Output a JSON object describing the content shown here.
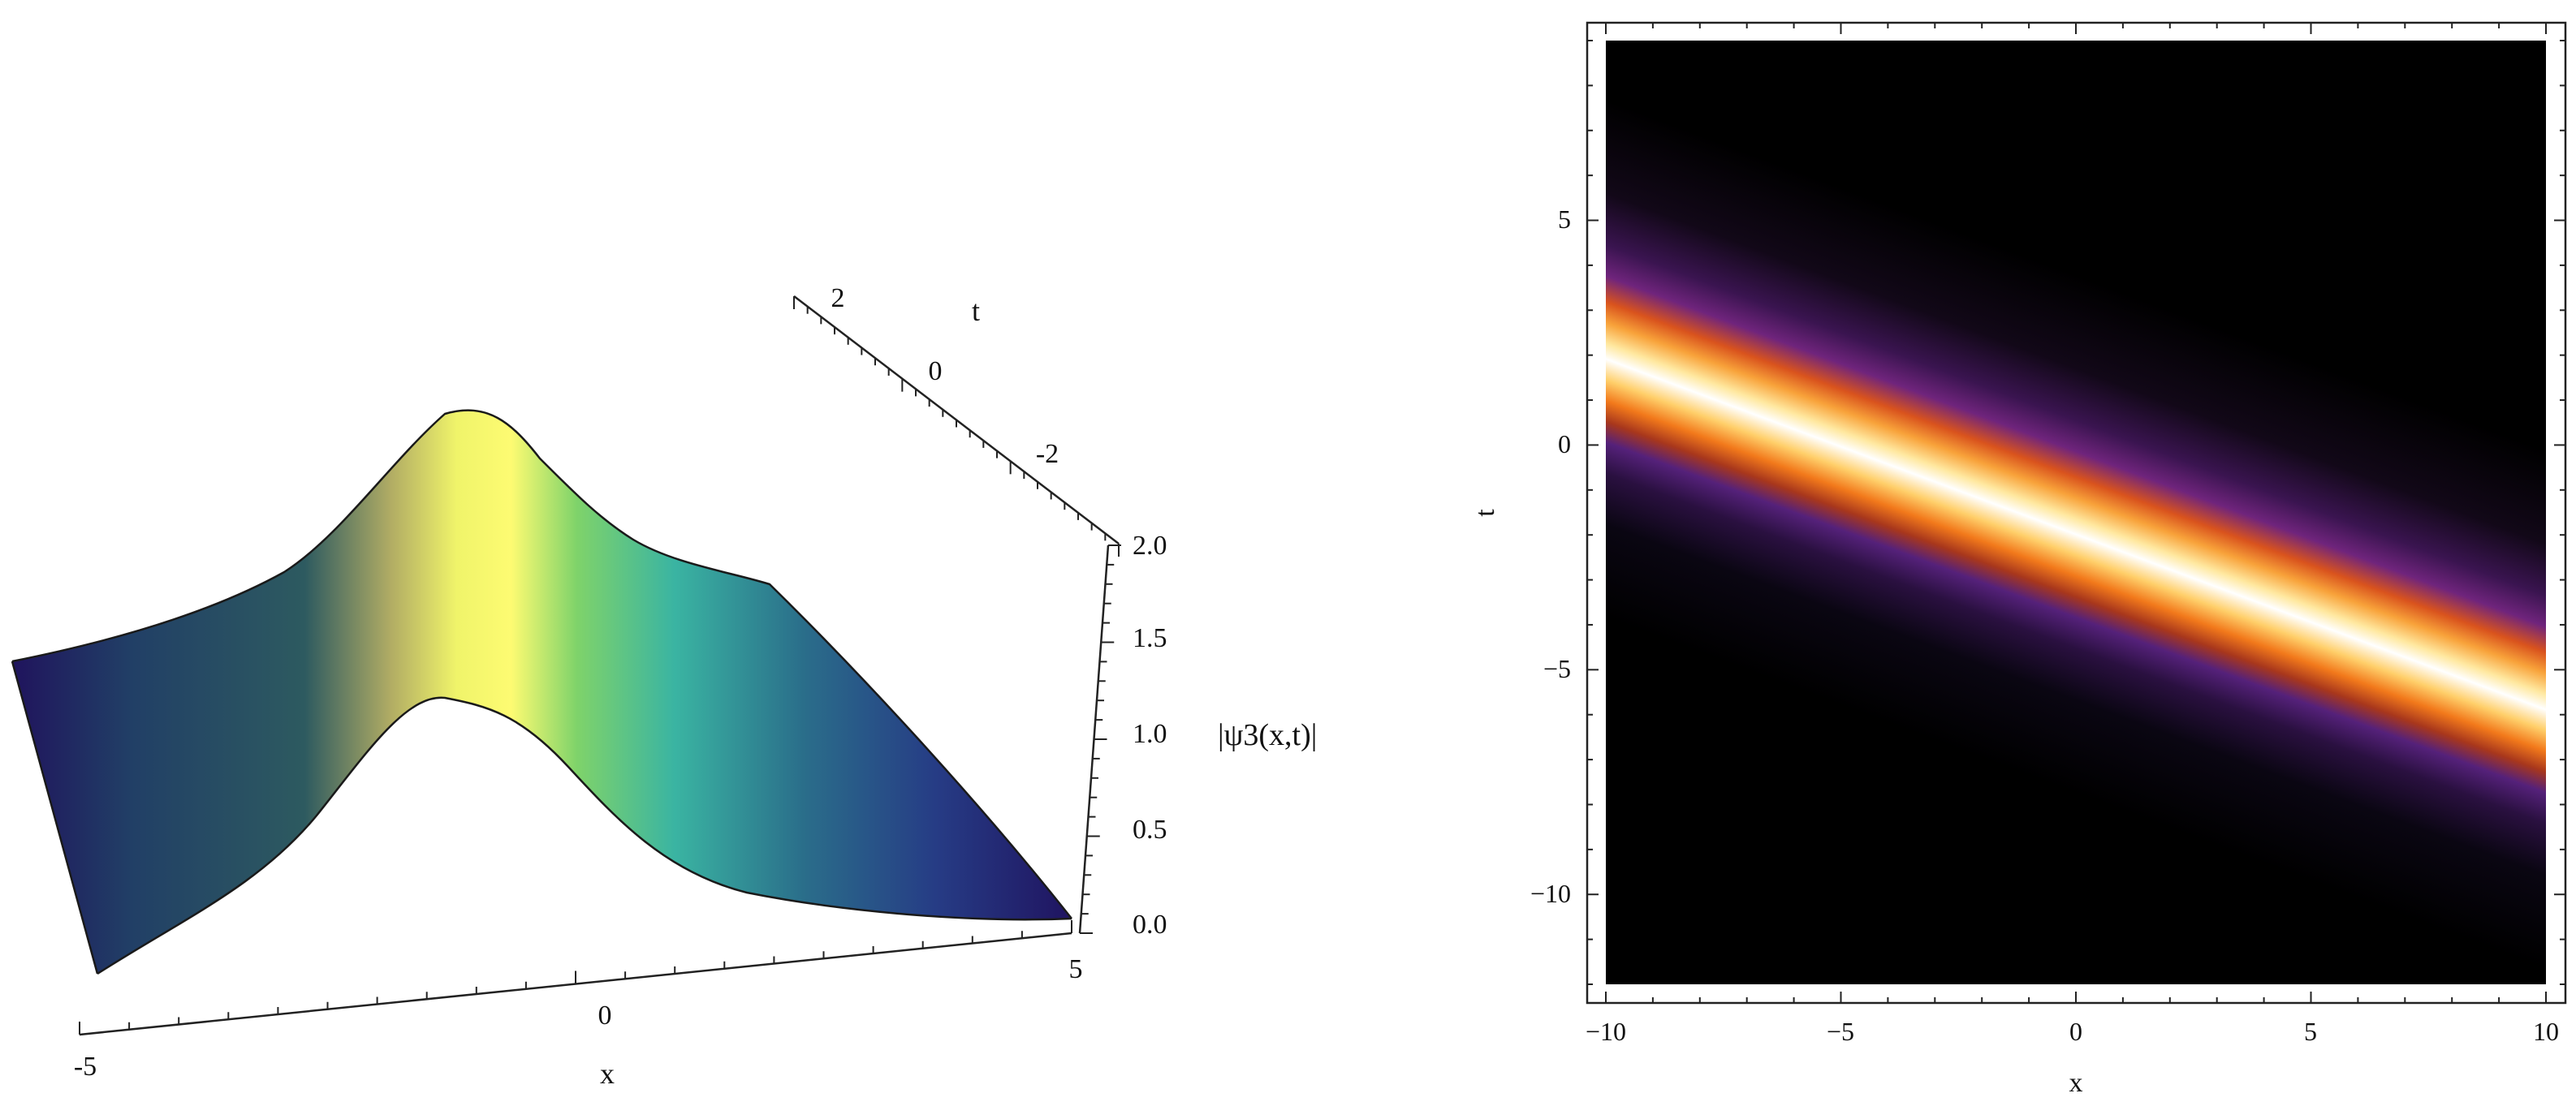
{
  "chart_data": [
    {
      "type": "surface3d",
      "function_label": "|ψ3(x,t)|",
      "xlabel": "x",
      "ylabel": "t",
      "zlabel": "|ψ3(x,t)|",
      "xlim": [
        -5,
        5
      ],
      "ylim": [
        -3,
        3
      ],
      "zlim": [
        0,
        2
      ],
      "x_ticks": [
        "-5",
        "0",
        "5"
      ],
      "t_ticks": [
        "2",
        "0",
        "-2"
      ],
      "z_ticks": [
        "0.0",
        "0.5",
        "1.0",
        "1.5",
        "2.0"
      ],
      "profile_at_front": {
        "x": [
          -5,
          -4,
          -3,
          -2,
          -1.5,
          -1,
          -0.5,
          0,
          0.5,
          1,
          2,
          3,
          4,
          5
        ],
        "z": [
          0.05,
          0.15,
          0.4,
          0.95,
          1.2,
          1.2,
          1.0,
          0.72,
          0.5,
          0.35,
          0.18,
          0.08,
          0.03,
          0.01
        ]
      },
      "profile_at_back": {
        "x": [
          -5,
          -4,
          -3,
          -2,
          -1.5,
          -1,
          -0.5,
          0,
          0.5,
          1,
          2,
          3,
          4,
          5
        ],
        "z": [
          0.6,
          0.8,
          1.05,
          1.55,
          1.68,
          1.62,
          1.45,
          1.25,
          1.12,
          1.05,
          0.72,
          0.35,
          0.12,
          0.02
        ]
      },
      "colormap": [
        "#1f0f5c",
        "#2a6d80",
        "#7fd36a",
        "#fdfb72"
      ],
      "grid": false
    },
    {
      "type": "heatmap",
      "xlabel": "x",
      "ylabel": "t",
      "xlim": [
        -10,
        10
      ],
      "ylim": [
        -12,
        9
      ],
      "x_ticks": [
        "−10",
        "−5",
        "0",
        "5",
        "10"
      ],
      "y_ticks": [
        "−10",
        "−5",
        "0",
        "5"
      ],
      "ridge_center_at_t_min": -5,
      "ridge_center_at_t_max": 2.5,
      "colormap": [
        "#000000",
        "#1b0c29",
        "#4a1a6b",
        "#a8371c",
        "#f2791b",
        "#ffcf6a",
        "#ffffff"
      ],
      "grid": false
    }
  ]
}
